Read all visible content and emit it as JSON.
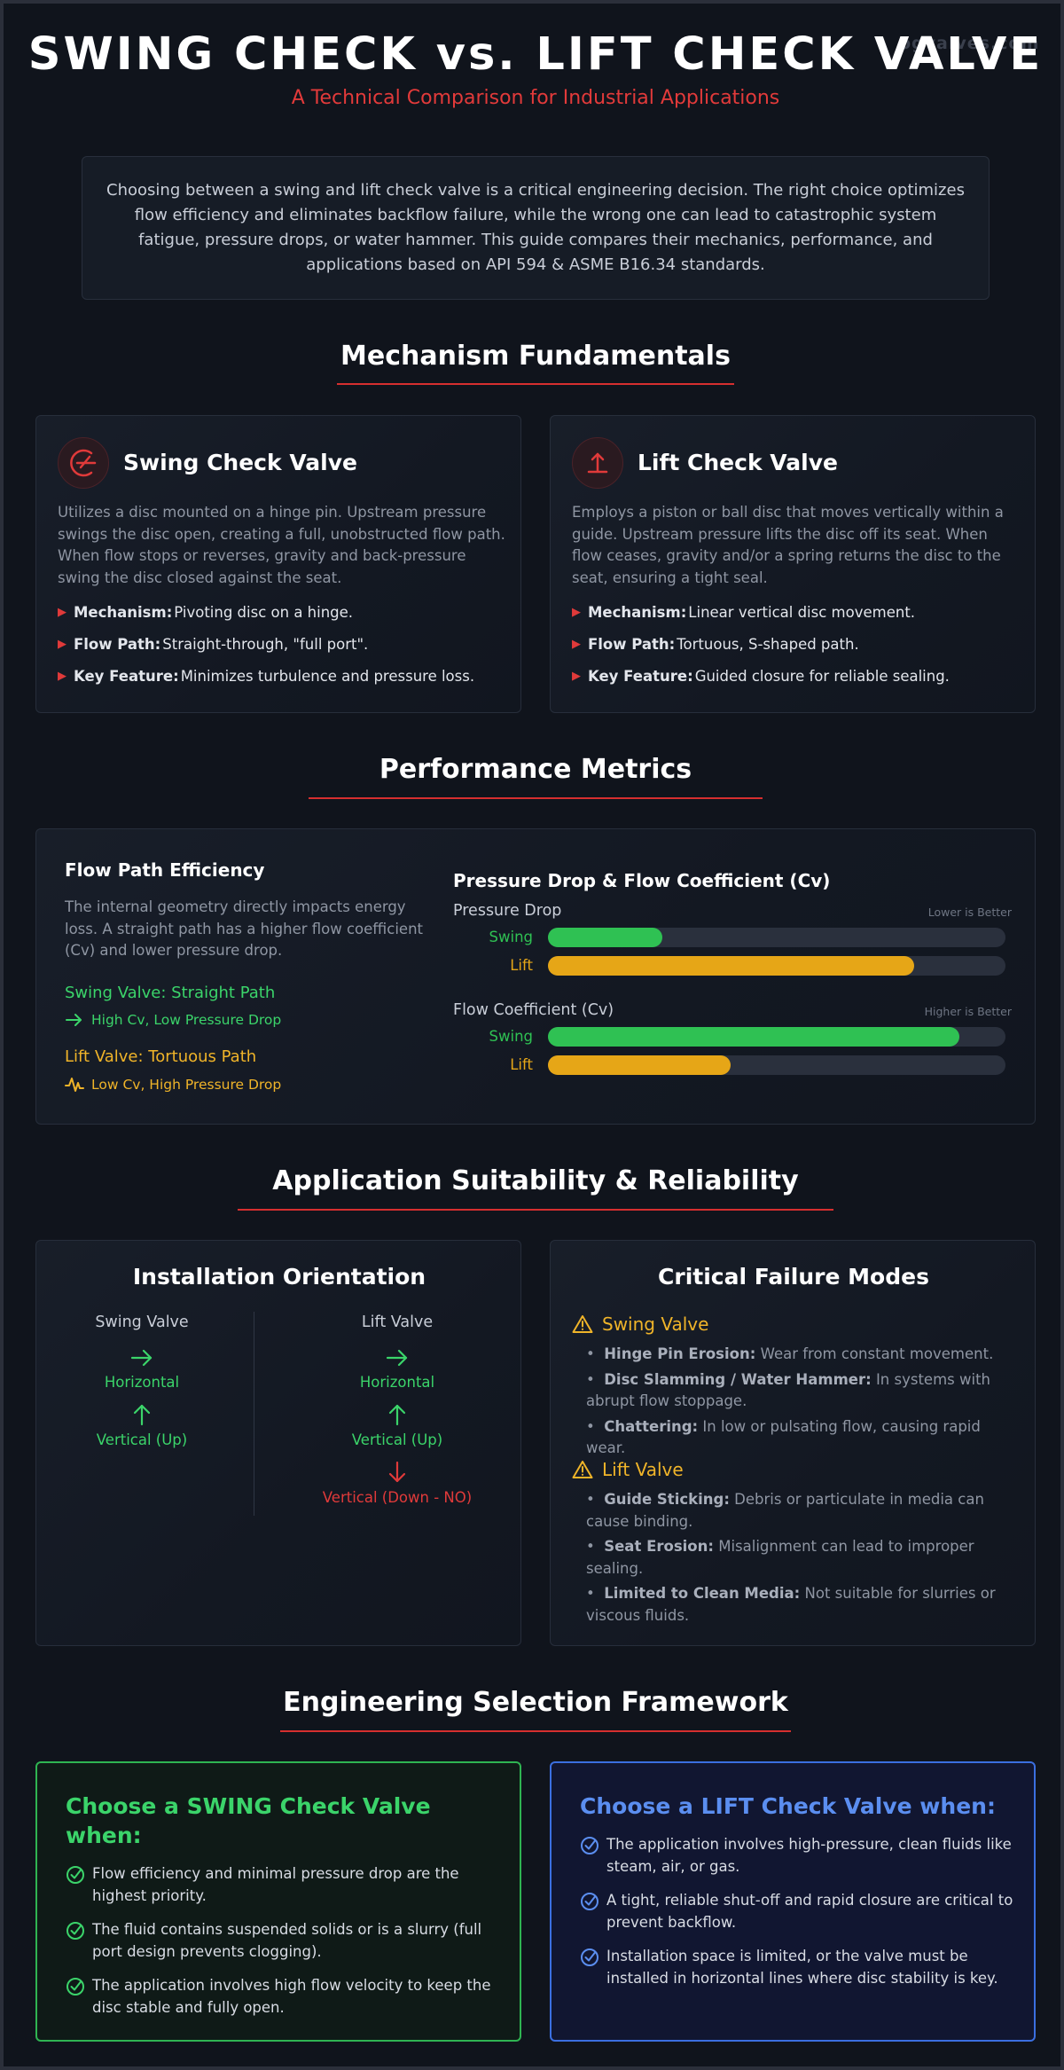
{
  "watermark": "ogvalves.com",
  "header": {
    "title": "SWING CHECK vs. LIFT CHECK VALVE",
    "subtitle": "A Technical Comparison for Industrial Applications"
  },
  "intro": "Choosing between a swing and lift check valve is a critical engineering decision. The right choice optimizes flow efficiency and eliminates backflow failure, while the wrong one can lead to catastrophic system fatigue, pressure drops, or water hammer. This guide compares their mechanics, performance, and applications based on API 594 & ASME B16.34 standards.",
  "mechanism": {
    "title": "Mechanism Fundamentals",
    "swing": {
      "icon": "swing-disc-icon",
      "title": "Swing Check Valve",
      "description": "Utilizes a disc mounted on a hinge pin. Upstream pressure swings the disc open, creating a full, unobstructed flow path. When flow stops or reverses, gravity and back-pressure swing the disc closed against the seat.",
      "points": [
        {
          "label": "Mechanism:",
          "text": "Pivoting disc on a hinge."
        },
        {
          "label": "Flow Path:",
          "text": "Straight-through, \"full port\"."
        },
        {
          "label": "Key Feature:",
          "text": "Minimizes turbulence and pressure loss."
        }
      ]
    },
    "lift": {
      "icon": "lift-disc-icon",
      "title": "Lift Check Valve",
      "description": "Employs a piston or ball disc that moves vertically within a guide. Upstream pressure lifts the disc off its seat. When flow ceases, gravity and/or a spring returns the disc to the seat, ensuring a tight seal.",
      "points": [
        {
          "label": "Mechanism:",
          "text": "Linear vertical disc movement."
        },
        {
          "label": "Flow Path:",
          "text": "Tortuous, S-shaped path."
        },
        {
          "label": "Key Feature:",
          "text": "Guided closure for reliable sealing."
        }
      ]
    }
  },
  "performance": {
    "title": "Performance Metrics",
    "flow_title": "Flow Path Efficiency",
    "flow_desc": "The internal geometry directly impacts energy loss. A straight path has a higher flow coefficient (Cv) and lower pressure drop.",
    "swing_path": "Swing Valve: Straight Path",
    "swing_path_note": "High Cv, Low Pressure Drop",
    "lift_path": "Lift Valve: Tortuous Path",
    "lift_path_note": "Low Cv, High Pressure Drop",
    "bars_title": "Pressure Drop & Flow Coefficient (Cv)"
  },
  "chart_data": {
    "type": "bar",
    "title": "Pressure Drop & Flow Coefficient (Cv)",
    "groups": [
      {
        "name": "Pressure Drop",
        "note": "Lower is Better",
        "series": [
          {
            "name": "Swing",
            "value": 25,
            "color": "#2fc153"
          },
          {
            "name": "Lift",
            "value": 80,
            "color": "#e6a617"
          }
        ]
      },
      {
        "name": "Flow Coefficient (Cv)",
        "note": "Higher is Better",
        "series": [
          {
            "name": "Swing",
            "value": 90,
            "color": "#2fc153"
          },
          {
            "name": "Lift",
            "value": 40,
            "color": "#e6a617"
          }
        ]
      }
    ],
    "ylim": [
      0,
      100
    ]
  },
  "suitability": {
    "title": "Application Suitability & Reliability",
    "orientation": {
      "title": "Installation Orientation",
      "swing": {
        "name": "Swing Valve",
        "items": [
          "Horizontal",
          "Vertical (Up)"
        ]
      },
      "lift": {
        "name": "Lift Valve",
        "items": [
          "Horizontal",
          "Vertical (Up)",
          "Vertical (Down - NO)"
        ]
      }
    },
    "failures": {
      "title": "Critical Failure Modes",
      "swing": {
        "name": "Swing Valve",
        "items": [
          {
            "label": "Hinge Pin Erosion:",
            "text": "Wear from constant movement."
          },
          {
            "label": "Disc Slamming / Water Hammer:",
            "text": "In systems with abrupt flow stoppage."
          },
          {
            "label": "Chattering:",
            "text": "In low or pulsating flow, causing rapid wear."
          }
        ]
      },
      "lift": {
        "name": "Lift Valve",
        "items": [
          {
            "label": "Guide Sticking:",
            "text": "Debris or particulate in media can cause binding."
          },
          {
            "label": "Seat Erosion:",
            "text": "Misalignment can lead to improper sealing."
          },
          {
            "label": "Limited to Clean Media:",
            "text": "Not suitable for slurries or viscous fluids."
          }
        ]
      }
    }
  },
  "framework": {
    "title": "Engineering Selection Framework",
    "swing": {
      "title": "Choose a SWING Check Valve when:",
      "items": [
        "Flow efficiency and minimal pressure drop are the highest priority.",
        "The fluid contains suspended solids or is a slurry (full port design prevents clogging).",
        "The application involves high flow velocity to keep the disc stable and fully open."
      ]
    },
    "lift": {
      "title": "Choose a LIFT Check Valve when:",
      "items": [
        "The application involves high-pressure, clean fluids like steam, air, or gas.",
        "A tight, reliable shut-off and rapid closure are critical to prevent backflow.",
        "Installation space is limited, or the valve must be installed in horizontal lines where disc stability is key."
      ]
    }
  },
  "colors": {
    "accent_red": "#e03a3a",
    "swing_green": "#3bd46a",
    "lift_amber": "#f0b429",
    "lift_blue": "#5b8ef0"
  }
}
